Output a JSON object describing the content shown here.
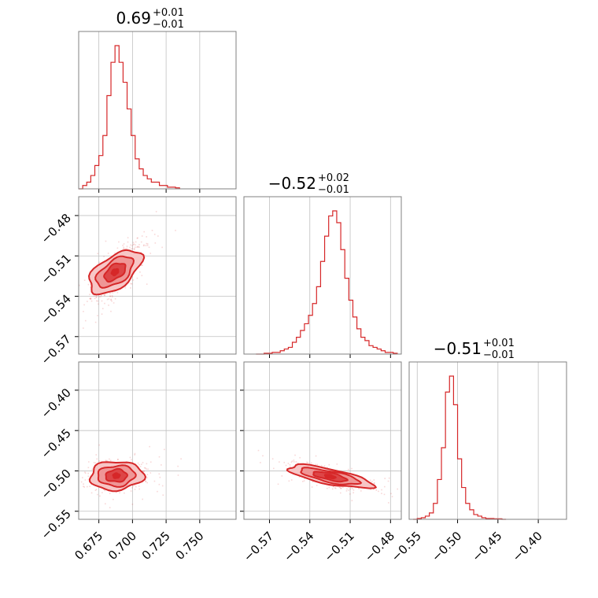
{
  "figure_type": "corner-plot",
  "colors": {
    "main": "#d62728",
    "fill_light": "#f7c6c6",
    "fill_mid": "#ec8a8a",
    "fill_dark": "#d9383a"
  },
  "chart_data": [
    {
      "type": "histogram",
      "panel": "p0-0",
      "title": {
        "value": "0.69",
        "plus": "+0.01",
        "minus": "−0.01"
      },
      "xlim": [
        0.66,
        0.777
      ],
      "bin_edges": [
        0.66,
        0.663,
        0.666,
        0.669,
        0.672,
        0.675,
        0.678,
        0.681,
        0.684,
        0.687,
        0.69,
        0.693,
        0.696,
        0.699,
        0.702,
        0.705,
        0.708,
        0.711,
        0.714,
        0.717,
        0.72,
        0.723,
        0.726,
        0.729,
        0.732,
        0.735
      ],
      "counts": [
        0,
        1,
        2,
        4,
        7,
        10,
        16,
        28,
        38,
        43,
        38,
        32,
        24,
        16,
        9,
        6,
        4,
        3,
        2,
        2,
        1,
        1,
        0.5,
        0.5,
        0.3
      ],
      "ticks": [
        "0.675",
        "0.700",
        "0.725",
        "0.750"
      ],
      "tick_values": [
        0.675,
        0.7,
        0.725,
        0.75
      ]
    },
    {
      "type": "scatter",
      "panel": "p1-0",
      "xlim": [
        0.66,
        0.777
      ],
      "ylim": [
        -0.583,
        -0.466
      ],
      "yticks": [
        "−0.48",
        "−0.51",
        "−0.54",
        "−0.57"
      ],
      "ytick_values": [
        -0.48,
        -0.51,
        -0.54,
        -0.57
      ],
      "center": [
        0.687,
        -0.522
      ],
      "spread": [
        0.009,
        0.01
      ],
      "correlation": 0.75
    },
    {
      "type": "histogram",
      "panel": "p1-1",
      "title": {
        "value": "−0.52",
        "plus": "+0.02",
        "minus": "−0.01"
      },
      "xlim": [
        -0.589,
        -0.472
      ],
      "bin_edges": [
        -0.58,
        -0.577,
        -0.574,
        -0.571,
        -0.568,
        -0.565,
        -0.562,
        -0.559,
        -0.556,
        -0.553,
        -0.55,
        -0.547,
        -0.544,
        -0.541,
        -0.538,
        -0.535,
        -0.532,
        -0.529,
        -0.526,
        -0.523,
        -0.52,
        -0.517,
        -0.514,
        -0.511,
        -0.508,
        -0.505,
        -0.502,
        -0.499,
        -0.496,
        -0.493,
        -0.49,
        -0.487,
        -0.484,
        -0.481,
        -0.478,
        -0.475
      ],
      "counts": [
        0,
        0,
        0.5,
        0.5,
        1,
        1,
        2,
        3,
        4,
        7,
        10,
        14,
        18,
        23,
        30,
        40,
        55,
        70,
        82,
        85,
        78,
        62,
        45,
        32,
        22,
        15,
        10,
        8,
        5,
        4,
        3,
        2,
        1,
        1,
        0.5
      ],
      "ticks": [
        "−0.57",
        "−0.54",
        "−0.51",
        "−0.48"
      ],
      "tick_values": [
        -0.57,
        -0.54,
        -0.51,
        -0.48
      ]
    },
    {
      "type": "scatter",
      "panel": "p2-0",
      "xlim": [
        0.66,
        0.777
      ],
      "ylim": [
        -0.56,
        -0.365
      ],
      "yticks": [
        "−0.40",
        "−0.45",
        "−0.50",
        "−0.55"
      ],
      "ytick_values": [
        -0.4,
        -0.45,
        -0.5,
        -0.55
      ],
      "center": [
        0.688,
        -0.506
      ],
      "spread": [
        0.01,
        0.008
      ],
      "correlation": 0.1
    },
    {
      "type": "scatter",
      "panel": "p2-1",
      "xlim": [
        -0.589,
        -0.472
      ],
      "ylim": [
        -0.56,
        -0.365
      ],
      "center": [
        -0.525,
        -0.507
      ],
      "spread": [
        0.013,
        0.007
      ],
      "correlation": -0.7
    },
    {
      "type": "histogram",
      "panel": "p2-2",
      "title": {
        "value": "−0.51",
        "plus": "+0.01",
        "minus": "−0.01"
      },
      "xlim": [
        -0.56,
        -0.365
      ],
      "bin_edges": [
        -0.555,
        -0.55,
        -0.545,
        -0.54,
        -0.535,
        -0.53,
        -0.525,
        -0.52,
        -0.515,
        -0.51,
        -0.505,
        -0.5,
        -0.495,
        -0.49,
        -0.485,
        -0.48,
        -0.475,
        -0.47,
        -0.465,
        -0.46,
        -0.455,
        -0.45,
        -0.445,
        -0.44
      ],
      "counts": [
        0,
        0.5,
        1,
        2,
        4,
        10,
        25,
        45,
        80,
        90,
        72,
        38,
        20,
        10,
        6,
        3,
        2,
        1,
        0.5,
        0.5,
        0.3,
        0.3,
        0
      ],
      "ticks": [
        "−0.55",
        "−0.50",
        "−0.45",
        "−0.40"
      ],
      "tick_values": [
        -0.55,
        -0.5,
        -0.45,
        -0.4
      ]
    }
  ]
}
